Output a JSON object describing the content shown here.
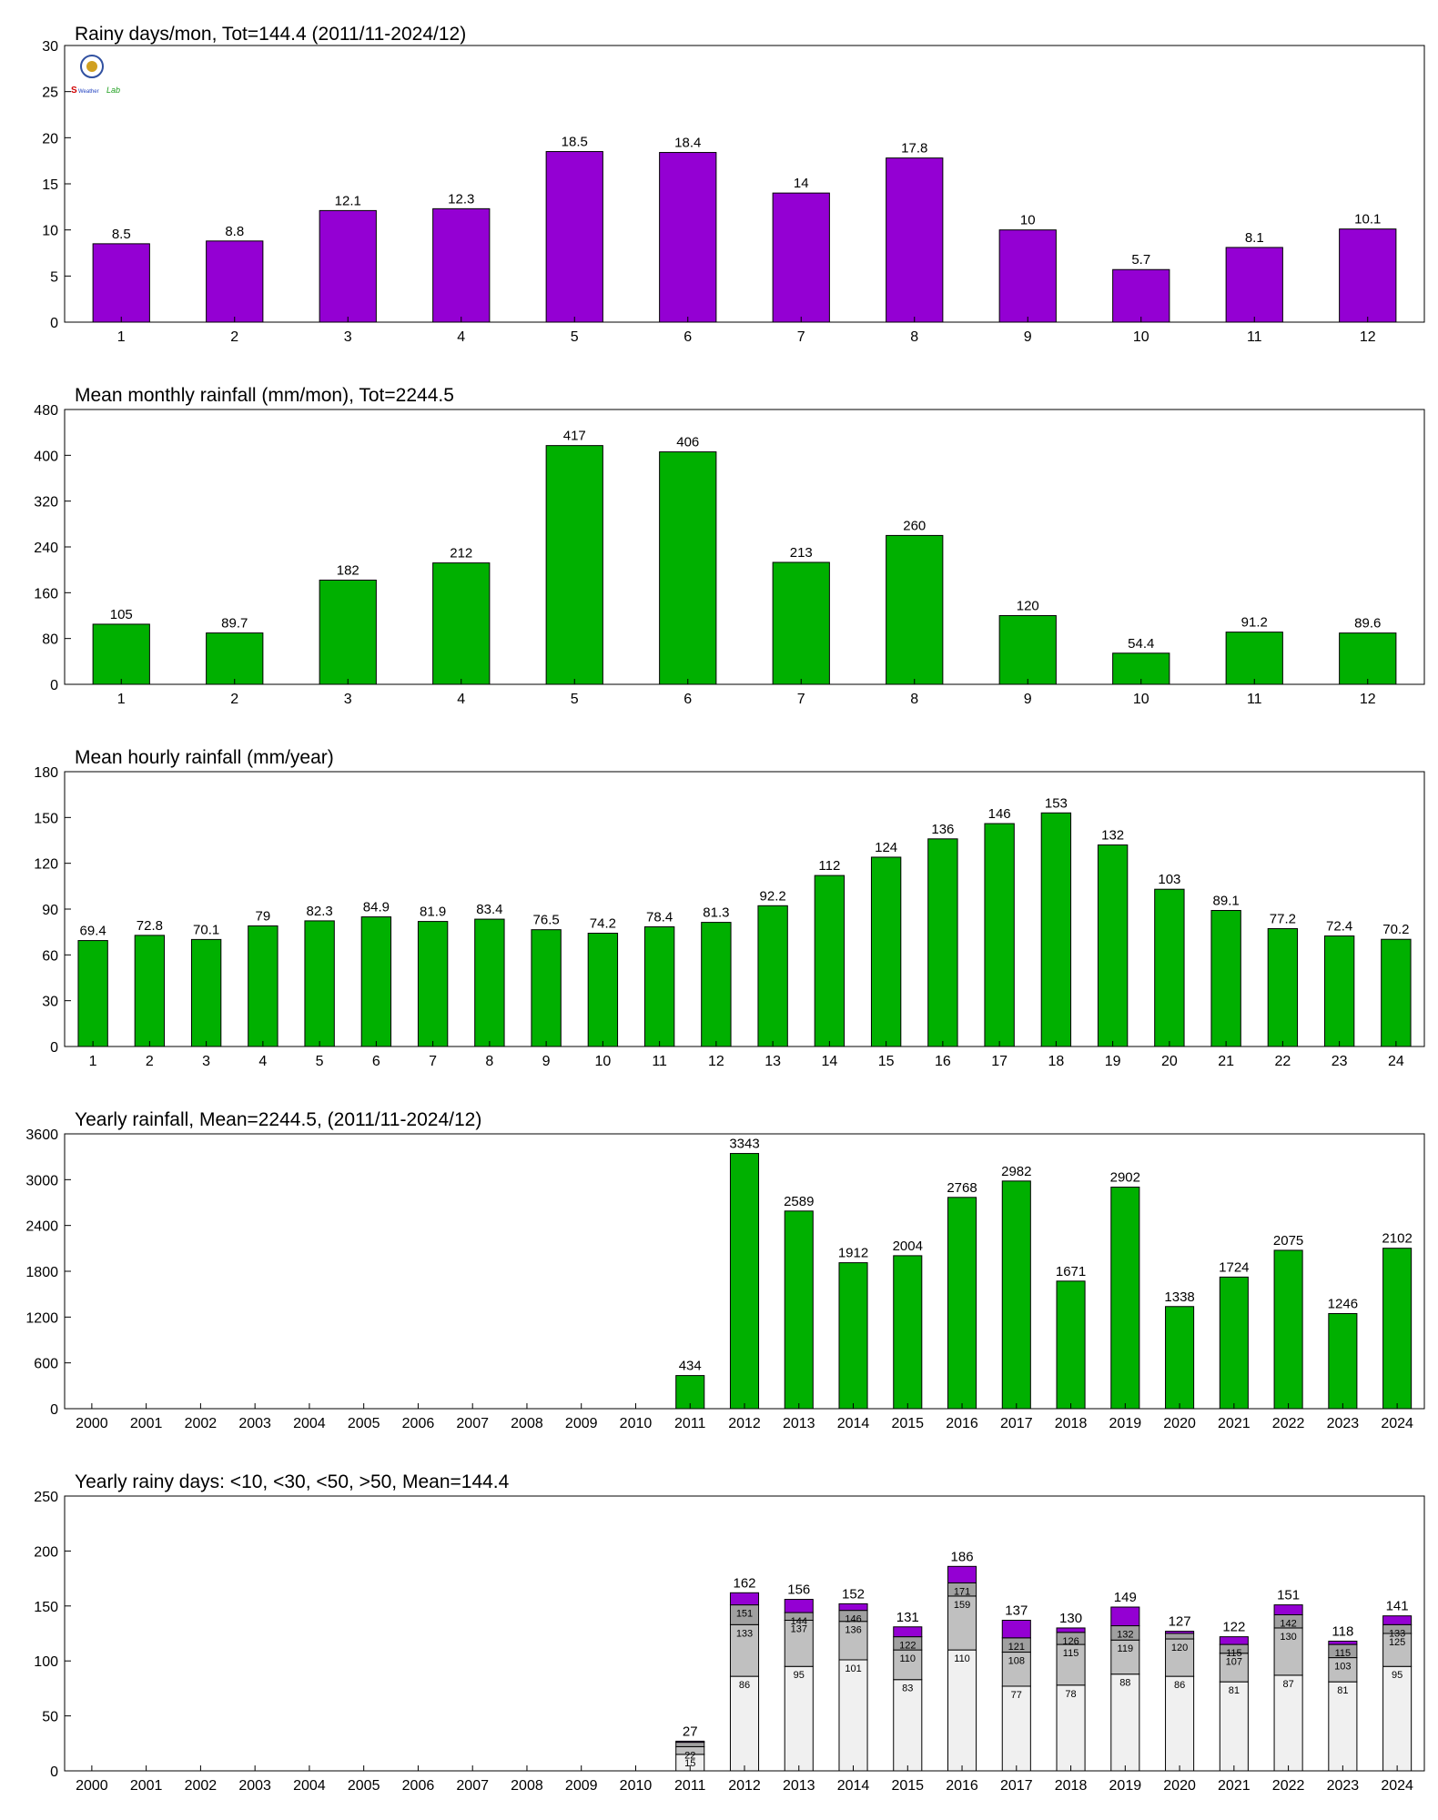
{
  "logo": {
    "name": "weather-station-logo-icon",
    "text_left": "S",
    "text_mid": "Weather",
    "text_right": "Lab"
  },
  "colors": {
    "purple": "#9400d3",
    "green": "#00b000",
    "seg_lt10": "#f0f0f0",
    "seg_lt30": "#c0c0c0",
    "seg_lt50": "#a0a0a0",
    "seg_gt50": "#9400d3"
  },
  "chart_data": [
    {
      "id": "rainy-days-month",
      "type": "bar",
      "title": "Rainy days/mon, Tot=144.4 (2011/11-2024/12)",
      "categories": [
        "1",
        "2",
        "3",
        "4",
        "5",
        "6",
        "7",
        "8",
        "9",
        "10",
        "11",
        "12"
      ],
      "values": [
        8.5,
        8.8,
        12.1,
        12.3,
        18.5,
        18.4,
        14,
        17.8,
        10,
        5.7,
        8.1,
        10.1
      ],
      "labels": [
        "8.5",
        "8.8",
        "12.1",
        "12.3",
        "18.5",
        "18.4",
        "14",
        "17.8",
        "10",
        "5.7",
        "8.1",
        "10.1"
      ],
      "ylim": [
        0,
        30
      ],
      "yticks": [
        0,
        5,
        10,
        15,
        20,
        25,
        30
      ],
      "color": "#9400d3"
    },
    {
      "id": "mean-monthly-rainfall",
      "type": "bar",
      "title": "Mean monthly rainfall (mm/mon), Tot=2244.5",
      "categories": [
        "1",
        "2",
        "3",
        "4",
        "5",
        "6",
        "7",
        "8",
        "9",
        "10",
        "11",
        "12"
      ],
      "values": [
        105,
        89.7,
        182,
        212,
        417,
        406,
        213,
        260,
        120,
        54.4,
        91.2,
        89.6
      ],
      "labels": [
        "105",
        "89.7",
        "182",
        "212",
        "417",
        "406",
        "213",
        "260",
        "120",
        "54.4",
        "91.2",
        "89.6"
      ],
      "ylim": [
        0,
        480
      ],
      "yticks": [
        0,
        80,
        160,
        240,
        320,
        400,
        480
      ],
      "color": "#00b000"
    },
    {
      "id": "mean-hourly-rainfall",
      "type": "bar",
      "title": "Mean hourly rainfall (mm/year)",
      "categories": [
        "1",
        "2",
        "3",
        "4",
        "5",
        "6",
        "7",
        "8",
        "9",
        "10",
        "11",
        "12",
        "13",
        "14",
        "15",
        "16",
        "17",
        "18",
        "19",
        "20",
        "21",
        "22",
        "23",
        "24"
      ],
      "values": [
        69.4,
        72.8,
        70.1,
        79,
        82.3,
        84.9,
        81.9,
        83.4,
        76.5,
        74.2,
        78.4,
        81.3,
        92.2,
        112,
        124,
        136,
        146,
        153,
        132,
        103,
        89.1,
        77.2,
        72.4,
        70.2
      ],
      "labels": [
        "69.4",
        "72.8",
        "70.1",
        "79",
        "82.3",
        "84.9",
        "81.9",
        "83.4",
        "76.5",
        "74.2",
        "78.4",
        "81.3",
        "92.2",
        "112",
        "124",
        "136",
        "146",
        "153",
        "132",
        "103",
        "89.1",
        "77.2",
        "72.4",
        "70.2"
      ],
      "ylim": [
        0,
        180
      ],
      "yticks": [
        0,
        30,
        60,
        90,
        120,
        150,
        180
      ],
      "color": "#00b000"
    },
    {
      "id": "yearly-rainfall",
      "type": "bar",
      "title": "Yearly rainfall, Mean=2244.5, (2011/11-2024/12)",
      "categories": [
        "2000",
        "2001",
        "2002",
        "2003",
        "2004",
        "2005",
        "2006",
        "2007",
        "2008",
        "2009",
        "2010",
        "2011",
        "2012",
        "2013",
        "2014",
        "2015",
        "2016",
        "2017",
        "2018",
        "2019",
        "2020",
        "2021",
        "2022",
        "2023",
        "2024"
      ],
      "values": [
        null,
        null,
        null,
        null,
        null,
        null,
        null,
        null,
        null,
        null,
        null,
        434,
        3343,
        2589,
        1912,
        2004,
        2768,
        2982,
        1671,
        2902,
        1338,
        1724,
        2075,
        1246,
        2102
      ],
      "labels": [
        "",
        "",
        "",
        "",
        "",
        "",
        "",
        "",
        "",
        "",
        "",
        "434",
        "3343",
        "2589",
        "1912",
        "2004",
        "2768",
        "2982",
        "1671",
        "2902",
        "1338",
        "1724",
        "2075",
        "1246",
        "2102"
      ],
      "ylim": [
        0,
        3600
      ],
      "yticks": [
        0,
        600,
        1200,
        1800,
        2400,
        3000,
        3600
      ],
      "color": "#00b000"
    },
    {
      "id": "yearly-rainy-days",
      "type": "bar",
      "stacked": true,
      "title": "Yearly rainy days: <10, <30, <50, >50, Mean=144.4",
      "categories": [
        "2000",
        "2001",
        "2002",
        "2003",
        "2004",
        "2005",
        "2006",
        "2007",
        "2008",
        "2009",
        "2010",
        "2011",
        "2012",
        "2013",
        "2014",
        "2015",
        "2016",
        "2017",
        "2018",
        "2019",
        "2020",
        "2021",
        "2022",
        "2023",
        "2024"
      ],
      "cumulative": {
        "lt10": [
          null,
          null,
          null,
          null,
          null,
          null,
          null,
          null,
          null,
          null,
          null,
          15,
          86,
          95,
          101,
          83,
          110,
          77,
          78,
          88,
          86,
          81,
          87,
          81,
          95
        ],
        "lt30": [
          null,
          null,
          null,
          null,
          null,
          null,
          null,
          null,
          null,
          null,
          null,
          22,
          133,
          137,
          136,
          110,
          159,
          108,
          115,
          119,
          120,
          107,
          130,
          103,
          125
        ],
        "lt50": [
          null,
          null,
          null,
          null,
          null,
          null,
          null,
          null,
          null,
          null,
          null,
          26,
          151,
          144,
          146,
          122,
          171,
          121,
          126,
          132,
          125,
          115,
          142,
          115,
          133
        ],
        "total": [
          null,
          null,
          null,
          null,
          null,
          null,
          null,
          null,
          null,
          null,
          null,
          27,
          162,
          156,
          152,
          131,
          186,
          137,
          130,
          149,
          127,
          122,
          151,
          118,
          141
        ]
      },
      "segment_labels": {
        "lt10": [
          "",
          "",
          "",
          "",
          "",
          "",
          "",
          "",
          "",
          "",
          "",
          "15",
          "86",
          "95",
          "101",
          "83",
          "110",
          "77",
          "78",
          "88",
          "86",
          "81",
          "87",
          "81",
          "95"
        ],
        "lt30": [
          "",
          "",
          "",
          "",
          "",
          "",
          "",
          "",
          "",
          "",
          "",
          "22",
          "133",
          "137",
          "136",
          "110",
          "159",
          "108",
          "115",
          "119",
          "120",
          "107",
          "130",
          "103",
          "125"
        ],
        "lt50": [
          "",
          "",
          "",
          "",
          "",
          "",
          "",
          "",
          "",
          "",
          "",
          "",
          "151",
          "144",
          "146",
          "122",
          "171",
          "121",
          "126",
          "132",
          "",
          "115",
          "142",
          "115",
          "133"
        ]
      },
      "total_labels": [
        "",
        "",
        "",
        "",
        "",
        "",
        "",
        "",
        "",
        "",
        "",
        "27",
        "162",
        "156",
        "152",
        "131",
        "186",
        "137",
        "130",
        "149",
        "127",
        "122",
        "151",
        "118",
        "141"
      ],
      "ylim": [
        0,
        250
      ],
      "yticks": [
        0,
        50,
        100,
        150,
        200,
        250
      ]
    }
  ]
}
